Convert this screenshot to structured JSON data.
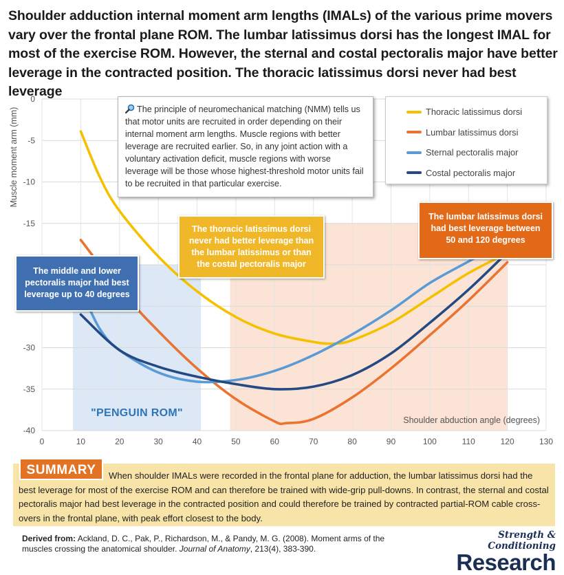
{
  "headline": "Shoulder adduction internal moment arm lengths (IMALs) of the various prime movers vary over the frontal plane ROM. The lumbar latissimus dorsi has the longest IMAL for most of the exercise ROM. However, the sternal and costal pectoralis major have better leverage in the contracted position. The thoracic latissimus dorsi never had best leverage",
  "nmm_note": "The principle of neuromechanical matching (NMM) tells us that motor units are recruited in order depending on their internal moment arm lengths. Muscle regions with better leverage are recruited earlier. So,  in any joint action with a voluntary activation deficit, muscle regions with worse leverage will be those whose highest-threshold motor units fail to be recruited in that particular exercise.",
  "callouts": {
    "pectoralis": "The middle and lower pectoralis major had best leverage up to 40 degrees",
    "thoracic": "The thoracic latissimus dorsi never had better leverage than the lumbar latissimus or than the costal pectoralis major",
    "lumbar": "The lumbar latissimus dorsi had best leverage between 50 and 120 degrees"
  },
  "penguin_label": "\"PENGUIN ROM\"",
  "summary": {
    "tag": "SUMMARY",
    "text": "When shoulder IMALs were recorded in the frontal plane for adduction, the lumbar latissimus dorsi had the best leverage for most of the exercise ROM and can therefore be trained with wide-grip pull-downs. In contrast, the sternal and costal pectoralis major had best leverage in the contracted position and could therefore be trained by contracted partial-ROM cable cross-overs in the frontal plane, with peak effort closest to the body."
  },
  "citation": {
    "label": "Derived from:",
    "text": "Ackland, D. C., Pak, P., Richardson, M., & Pandy, M. G. (2008). Moment arms of the muscles crossing the anatomical shoulder.",
    "journal": "Journal of Anatomy",
    "volume": ", 213(4), 383-390."
  },
  "logo": {
    "top": "Strength & Conditioning",
    "main": "Research"
  },
  "chart_data": {
    "type": "line",
    "title": "",
    "xlabel": "Shoulder abduction angle (degrees)",
    "ylabel": "Muscle moment arm (mm)",
    "xlim": [
      0,
      130
    ],
    "ylim": [
      -40,
      0
    ],
    "xticks": [
      0,
      10,
      20,
      30,
      40,
      50,
      60,
      70,
      80,
      90,
      100,
      110,
      120,
      130
    ],
    "yticks": [
      0,
      -5,
      -10,
      -15,
      -20,
      -25,
      -30,
      -35,
      -40
    ],
    "grid": true,
    "legend_position": "top-right",
    "shaded_regions": [
      {
        "from": 8,
        "to": 41,
        "y_bottom": -40,
        "y_top": -20,
        "color": "#dce8f6"
      },
      {
        "from": 48.5,
        "to": 120,
        "y_bottom": -40,
        "y_top": -15,
        "color": "#fbe4d5"
      }
    ],
    "series": [
      {
        "name": "Thoracic latissimus dorsi",
        "color": "#f5c000",
        "x": [
          10,
          15,
          20,
          30,
          40,
          50,
          60,
          70,
          75,
          80,
          90,
          100,
          110,
          120
        ],
        "y": [
          -3.9,
          -9.5,
          -13.5,
          -19,
          -23.2,
          -26.3,
          -28.3,
          -29.3,
          -29.5,
          -29.1,
          -27,
          -24,
          -21,
          -18.6
        ]
      },
      {
        "name": "Lumbar latissimus dorsi",
        "color": "#ea7331",
        "x": [
          10,
          20,
          30,
          40,
          50,
          60,
          63,
          70,
          80,
          90,
          100,
          110,
          120
        ],
        "y": [
          -17,
          -23,
          -28,
          -32.5,
          -36.2,
          -38.9,
          -39.1,
          -38.6,
          -36,
          -32.5,
          -28.5,
          -24.3,
          -19.7
        ]
      },
      {
        "name": "Sternal pectoralis major",
        "color": "#5b9bd5",
        "x": [
          10,
          15,
          20,
          30,
          40,
          50,
          60,
          70,
          80,
          90,
          100,
          110,
          120
        ],
        "y": [
          -23,
          -27.8,
          -30.3,
          -33,
          -34.1,
          -33.9,
          -32.8,
          -30.9,
          -28.4,
          -25.5,
          -22.2,
          -19.6,
          -17
        ]
      },
      {
        "name": "Costal pectoralis major",
        "color": "#254a83",
        "x": [
          10,
          20,
          30,
          40,
          50,
          60,
          70,
          80,
          90,
          100,
          110,
          120
        ],
        "y": [
          -26,
          -30.3,
          -32.3,
          -33.5,
          -34.4,
          -35,
          -34.7,
          -33.3,
          -30.7,
          -27,
          -23,
          -18.5
        ]
      }
    ]
  }
}
